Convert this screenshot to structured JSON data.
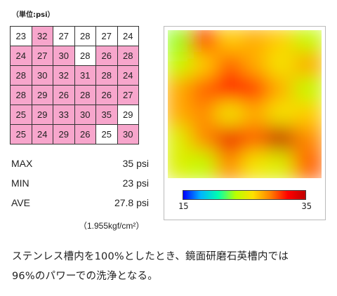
{
  "unit_label": "（単位:psi）",
  "chart_data": {
    "type": "heatmap",
    "rows": 6,
    "cols": 6,
    "values": [
      [
        23,
        32,
        27,
        28,
        27,
        24
      ],
      [
        24,
        27,
        30,
        28,
        26,
        28
      ],
      [
        28,
        30,
        32,
        31,
        28,
        24
      ],
      [
        28,
        29,
        26,
        28,
        26,
        27
      ],
      [
        25,
        29,
        33,
        30,
        35,
        29
      ],
      [
        25,
        24,
        29,
        26,
        25,
        30
      ]
    ],
    "highlighted": [
      [
        false,
        true,
        false,
        false,
        false,
        false
      ],
      [
        true,
        true,
        true,
        false,
        true,
        true
      ],
      [
        true,
        true,
        true,
        true,
        true,
        true
      ],
      [
        true,
        true,
        true,
        true,
        true,
        true
      ],
      [
        true,
        true,
        true,
        true,
        true,
        false
      ],
      [
        true,
        true,
        true,
        true,
        false,
        true
      ]
    ],
    "color_scale": {
      "min": 15,
      "max": 35,
      "min_label": "15",
      "max_label": "35"
    }
  },
  "stats": [
    {
      "label": "MAX",
      "value": "35 psi"
    },
    {
      "label": "MIN",
      "value": "23 psi"
    },
    {
      "label": "AVE",
      "value": "27.8 psi"
    }
  ],
  "conversion_note": "（1.955kgf/cm²）",
  "caption": {
    "line1": "ステンレス槽内を100%としたとき、鏡面研磨石英槽内では",
    "line2": "96%のパワーでの洗浄となる。"
  },
  "colors": {
    "highlight": "#f7a6cc",
    "gradient": [
      "#0000ff",
      "#00b4ff",
      "#00ffb0",
      "#b8ff00",
      "#ffe000",
      "#ff8000",
      "#ff0000",
      "#c00000"
    ]
  }
}
